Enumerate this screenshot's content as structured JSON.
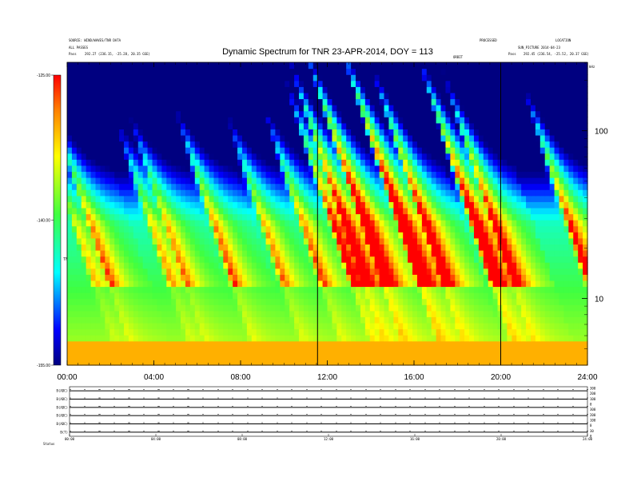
{
  "header": {
    "left_line1": "SOURCE: WIND/WAVES/TNR  DATA",
    "left_line2": "ALL PASSES",
    "left_pass": "Pass",
    "left_pass_value": "292.27 (236.15, -25.28, 20.35 GSE)",
    "mid_label": "ORBIT",
    "right_line1": "PROCESSED",
    "right_line2": "LOCATION",
    "right_line3": "SUN_PICTURE  2014-04-23",
    "right_pass": "Pass",
    "right_pass_value": "292.45 (236.54, -25.52, 20.37 GSE)",
    "khz_label": "kHz",
    "cb_label": "TNR",
    "footer_label": "Status"
  },
  "chart_data": {
    "type": "heatmap",
    "title": "Dynamic Spectrum for TNR 23-APR-2014, DOY = 113",
    "x_tick_labels": [
      "00:00",
      "04:00",
      "08:00",
      "12:00",
      "16:00",
      "20:00",
      "24:00"
    ],
    "x_ticks_hours": [
      0,
      4,
      8,
      12,
      16,
      20,
      24
    ],
    "xlim_hours": [
      0,
      24
    ],
    "y_tick_labels": [
      "100",
      "10"
    ],
    "y_ticks_khz": [
      100,
      10
    ],
    "ylim_khz": [
      4,
      256
    ],
    "y_scale": "log",
    "colorbar_ticks": [
      "-125.00",
      "-140.00",
      "-155.00"
    ],
    "colorbar_values": [
      -125,
      -140,
      -155
    ],
    "colorbar_range": [
      -155,
      -125
    ],
    "markers_hours": [
      11.55,
      20.0
    ],
    "low_panels": {
      "rows": [
        "B(ADC)",
        "B(ADC)",
        "B(ADC)",
        "B(ADC)",
        "B(ADC)",
        "B(T)"
      ],
      "right_labels": [
        "300",
        "200",
        "100",
        "0",
        "300",
        "200",
        "100",
        "0",
        "30",
        "0"
      ],
      "x_tick_labels": [
        "00:00",
        "04:00",
        "08:00",
        "12:00",
        "16:00",
        "20:00",
        "24:00"
      ]
    }
  }
}
